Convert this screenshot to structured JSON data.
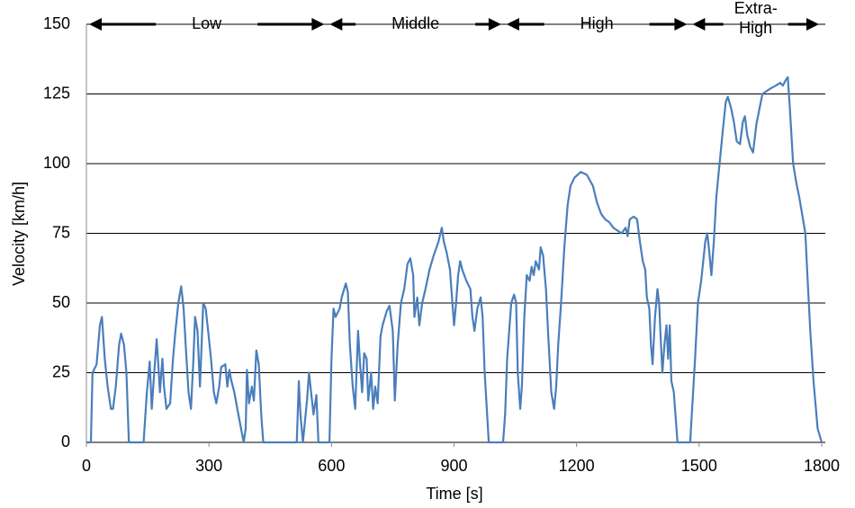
{
  "chart_data": {
    "type": "line",
    "xlabel": "Time  [s]",
    "ylabel": "Velocity [km/h]",
    "xlim": [
      0,
      1800
    ],
    "xticks": [
      0,
      300,
      600,
      900,
      1200,
      1500,
      1800
    ],
    "ylim": [
      0,
      150
    ],
    "yticks": [
      0,
      25,
      50,
      75,
      100,
      125,
      150
    ],
    "grid": true,
    "color": "#4a7ebb",
    "phases": [
      {
        "label": "Low",
        "start": 0,
        "end": 589
      },
      {
        "label": "Middle",
        "start": 589,
        "end": 1022
      },
      {
        "label": "High",
        "start": 1022,
        "end": 1477
      },
      {
        "label": [
          "Extra-",
          "High"
        ],
        "start": 1477,
        "end": 1800
      }
    ],
    "x": [
      0,
      11,
      15,
      25,
      33,
      38,
      45,
      52,
      60,
      65,
      72,
      80,
      85,
      92,
      98,
      104,
      140,
      148,
      155,
      160,
      166,
      172,
      176,
      180,
      186,
      190,
      196,
      205,
      212,
      218,
      225,
      232,
      238,
      243,
      250,
      256,
      262,
      266,
      272,
      278,
      282,
      286,
      292,
      298,
      305,
      312,
      318,
      325,
      330,
      340,
      345,
      350,
      355,
      362,
      372,
      385,
      390,
      393,
      398,
      405,
      410,
      416,
      422,
      428,
      433,
      515,
      520,
      524,
      530,
      540,
      545,
      550,
      556,
      563,
      568,
      595,
      600,
      605,
      610,
      620,
      625,
      635,
      640,
      645,
      652,
      658,
      665,
      670,
      675,
      680,
      686,
      690,
      697,
      702,
      707,
      713,
      720,
      725,
      735,
      742,
      750,
      755,
      762,
      770,
      778,
      786,
      793,
      800,
      803,
      810,
      815,
      822,
      830,
      840,
      850,
      862,
      870,
      875,
      882,
      890,
      895,
      900,
      905,
      910,
      915,
      920,
      930,
      940,
      945,
      950,
      957,
      965,
      970,
      975,
      985,
      1020,
      1025,
      1030,
      1040,
      1047,
      1052,
      1056,
      1062,
      1066,
      1072,
      1078,
      1085,
      1090,
      1095,
      1100,
      1108,
      1112,
      1118,
      1125,
      1130,
      1138,
      1145,
      1150,
      1155,
      1162,
      1170,
      1178,
      1185,
      1195,
      1210,
      1225,
      1240,
      1250,
      1260,
      1270,
      1280,
      1290,
      1300,
      1310,
      1320,
      1325,
      1330,
      1340,
      1348,
      1355,
      1362,
      1368,
      1372,
      1378,
      1382,
      1386,
      1392,
      1398,
      1402,
      1405,
      1410,
      1415,
      1420,
      1424,
      1428,
      1432,
      1438,
      1442,
      1447,
      1478,
      1482,
      1490,
      1497,
      1505,
      1510,
      1515,
      1520,
      1525,
      1530,
      1536,
      1542,
      1550,
      1558,
      1565,
      1570,
      1578,
      1585,
      1592,
      1600,
      1607,
      1612,
      1618,
      1625,
      1632,
      1640,
      1648,
      1655,
      1665,
      1675,
      1688,
      1698,
      1705,
      1712,
      1717,
      1722,
      1730,
      1738,
      1745,
      1752,
      1760,
      1765,
      1772,
      1780,
      1790,
      1800
    ],
    "values": [
      0,
      0,
      25,
      28,
      42,
      45,
      30,
      20,
      12,
      12,
      20,
      35,
      39,
      35,
      25,
      0,
      0,
      18,
      29,
      12,
      25,
      37,
      28,
      18,
      30,
      20,
      12,
      14,
      30,
      40,
      50,
      56,
      48,
      35,
      18,
      12,
      30,
      45,
      40,
      20,
      35,
      50,
      48,
      40,
      30,
      18,
      14,
      20,
      27,
      28,
      20,
      26,
      22,
      18,
      10,
      0,
      5,
      26,
      14,
      20,
      15,
      33,
      28,
      10,
      0,
      0,
      22,
      10,
      0,
      15,
      25,
      18,
      10,
      17,
      0,
      0,
      30,
      48,
      45,
      48,
      52,
      57,
      54,
      35,
      20,
      12,
      40,
      28,
      18,
      32,
      30,
      15,
      25,
      12,
      20,
      14,
      38,
      42,
      47,
      49,
      40,
      15,
      35,
      50,
      55,
      64,
      66,
      60,
      45,
      52,
      42,
      50,
      55,
      62,
      67,
      72,
      77,
      72,
      68,
      62,
      52,
      42,
      50,
      60,
      65,
      62,
      58,
      55,
      45,
      40,
      48,
      52,
      45,
      25,
      0,
      0,
      10,
      30,
      50,
      53,
      50,
      25,
      12,
      20,
      45,
      60,
      58,
      63,
      60,
      65,
      62,
      70,
      67,
      55,
      40,
      18,
      12,
      20,
      35,
      50,
      70,
      85,
      92,
      95,
      97,
      96,
      92,
      86,
      82,
      80,
      79,
      77,
      76,
      75,
      77,
      74,
      80,
      81,
      80,
      72,
      65,
      62,
      52,
      48,
      35,
      28,
      45,
      55,
      50,
      40,
      25,
      35,
      42,
      30,
      42,
      22,
      18,
      10,
      0,
      0,
      10,
      30,
      50,
      58,
      65,
      72,
      75,
      68,
      60,
      72,
      88,
      100,
      112,
      122,
      124,
      120,
      115,
      108,
      107,
      115,
      117,
      110,
      106,
      104,
      114,
      120,
      125,
      126,
      127,
      128,
      129,
      128,
      130,
      131,
      120,
      100,
      93,
      88,
      82,
      75,
      60,
      40,
      22,
      5,
      0
    ]
  }
}
